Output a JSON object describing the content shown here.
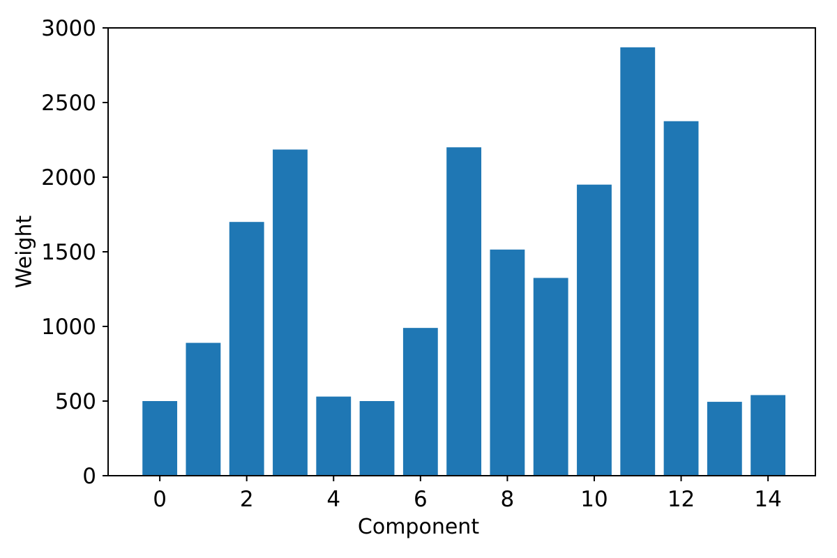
{
  "chart_data": {
    "type": "bar",
    "xlabel": "Component",
    "ylabel": "Weight",
    "categories": [
      0,
      1,
      2,
      3,
      4,
      5,
      6,
      7,
      8,
      9,
      10,
      11,
      12,
      13,
      14
    ],
    "values": [
      500,
      890,
      1700,
      2185,
      530,
      500,
      990,
      2200,
      1515,
      1325,
      1950,
      2870,
      2375,
      495,
      540
    ],
    "x_tick_values": [
      0,
      2,
      4,
      6,
      8,
      10,
      12,
      14
    ],
    "x_tick_labels": [
      "0",
      "2",
      "4",
      "6",
      "8",
      "10",
      "12",
      "14"
    ],
    "y_tick_values": [
      0,
      500,
      1000,
      1500,
      2000,
      2500,
      3000
    ],
    "y_tick_labels": [
      "0",
      "500",
      "1000",
      "1500",
      "2000",
      "2500",
      "3000"
    ],
    "ylim": [
      0,
      3000
    ],
    "xlim": [
      -1.19,
      15.09
    ],
    "bar_width": 0.8,
    "bar_color": "#1f77b4",
    "axis_color": "#000000",
    "background_color": "#ffffff",
    "grid": false,
    "legend": null
  }
}
